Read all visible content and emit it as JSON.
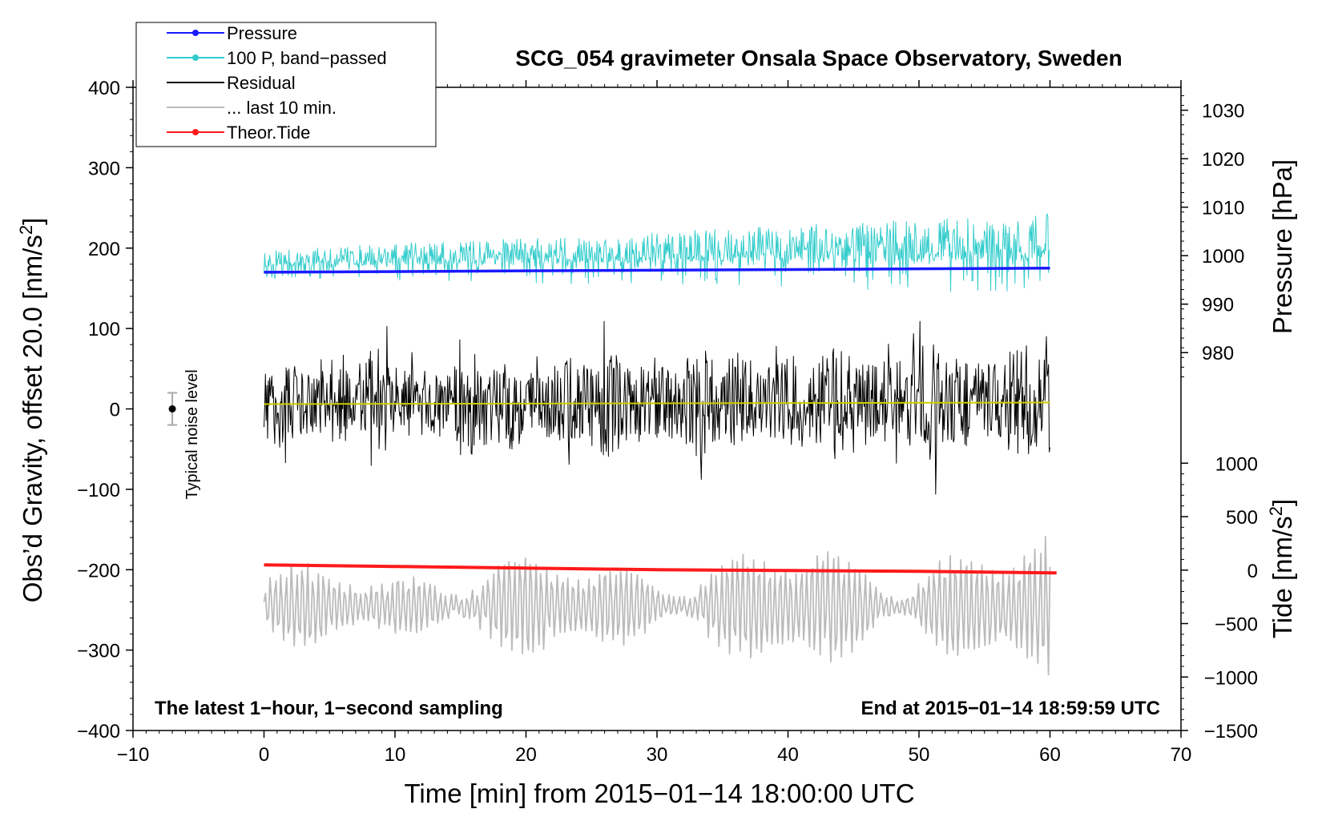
{
  "chart_data": {
    "type": "line",
    "title": "SCG_054 gravimeter Onsala Space Observatory, Sweden",
    "xlabel": "Time [min] from 2015−01−14 18:00:00 UTC",
    "ylabel_left_main": "Obs’d Gravity, offset 20.0 [nm/s",
    "ylabel_left_sup": "2",
    "ylabel_left_end": "]",
    "ylabel_right_pressure": "Pressure [hPa]",
    "ylabel_right_tide_main": "Tide [nm/s",
    "ylabel_right_tide_sup": "2",
    "ylabel_right_tide_end": "]",
    "xlim": [
      -10,
      70
    ],
    "ylim": [
      -400,
      400
    ],
    "xticks": [
      "−10",
      "0",
      "10",
      "20",
      "30",
      "40",
      "50",
      "60",
      "70"
    ],
    "xtick_values": [
      -10,
      0,
      10,
      20,
      30,
      40,
      50,
      60,
      70
    ],
    "yticks_left": [
      "400",
      "300",
      "200",
      "100",
      "0",
      "−100",
      "−200",
      "−300",
      "−400"
    ],
    "yticks_left_values": [
      400,
      300,
      200,
      100,
      0,
      -100,
      -200,
      -300,
      -400
    ],
    "yticks_pressure": [
      "1030",
      "1020",
      "1010",
      "1000",
      "990",
      "980"
    ],
    "yticks_pressure_values": [
      1030,
      1020,
      1010,
      1000,
      990,
      980
    ],
    "pressure_axis_map": {
      "value_a": 1030,
      "left_a": 371.5,
      "value_b": 980,
      "left_b": 70
    },
    "yticks_tide": [
      "1000",
      "500",
      "0",
      "−500",
      "−1000",
      "−1500"
    ],
    "yticks_tide_values": [
      1000,
      500,
      0,
      -500,
      -1000,
      -1500
    ],
    "tide_axis_map": {
      "value_a": 1000,
      "left_a": -67.5,
      "value_b": -1500,
      "left_b": -400
    },
    "annotation_left": "The latest 1−hour, 1−second sampling",
    "annotation_right": "End at 2015−01−14 18:59:59 UTC",
    "noise_level": {
      "label": "Typical noise level",
      "x": -7,
      "y": 0,
      "error": 20
    },
    "legend": [
      {
        "label": "Pressure",
        "color": "#1a1aff",
        "marker": true
      },
      {
        "label": "100 P, band−passed",
        "color": "#33cccc",
        "marker": true
      },
      {
        "label": "Residual",
        "color": "#000000",
        "marker": false
      },
      {
        "label": "... last 10 min.",
        "color": "#bbbbbb",
        "marker": false
      },
      {
        "label": "Theor.Tide",
        "color": "#ff1a1a",
        "marker": true
      }
    ],
    "series": [
      {
        "name": "Pressure",
        "axis": "left",
        "color": "#1a1aff",
        "width": 3.5,
        "x": [
          0,
          60
        ],
        "values": [
          170,
          175
        ]
      },
      {
        "name": "100 P, band−passed",
        "axis": "left",
        "color": "#33cccc",
        "width": 1,
        "noise": "cyan",
        "x": [
          0,
          60
        ],
        "values": [
          170,
          180
        ],
        "amplitude": [
          20,
          55
        ]
      },
      {
        "name": "Residual",
        "axis": "left",
        "color": "#000000",
        "width": 1,
        "noise": "black",
        "x": [
          0,
          60
        ],
        "values": [
          5,
          10
        ],
        "amplitude": [
          60,
          80
        ]
      },
      {
        "name": "Residual smoothed",
        "axis": "left",
        "color": "#cccc00",
        "width": 2,
        "x": [
          0,
          60
        ],
        "values": [
          6,
          8
        ]
      },
      {
        "name": "... last 10 min.",
        "axis": "left",
        "color": "#bbbbbb",
        "width": 1.8,
        "noise": "gray",
        "x": [
          0,
          60
        ],
        "values": [
          -245,
          -245
        ],
        "amplitude": [
          50,
          95
        ]
      },
      {
        "name": "Theor.Tide",
        "axis": "left",
        "color": "#ff1a1a",
        "width": 4,
        "x": [
          0,
          10,
          20,
          30,
          40,
          50,
          60.5
        ],
        "values": [
          -194,
          -196,
          -198,
          -200,
          -201,
          -202,
          -204
        ]
      }
    ]
  }
}
